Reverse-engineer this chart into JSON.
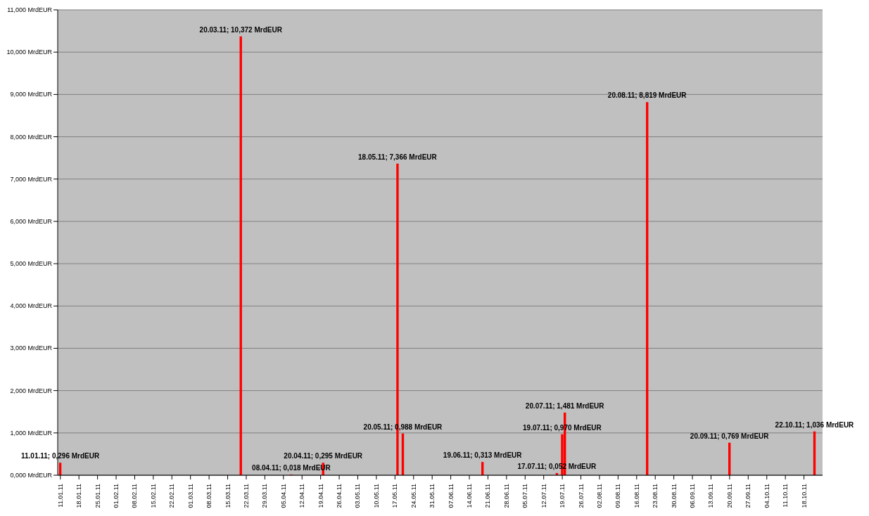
{
  "chart_data": {
    "type": "bar",
    "x": [
      "--01-11",
      "--03-20",
      "--04-08",
      "--04-20",
      "--05-18",
      "--05-20",
      "--06-19",
      "--07-17",
      "--07-19",
      "--07-20",
      "--08-20",
      "--09-20",
      "--10-22"
    ],
    "values": [
      0.296,
      10.372,
      0.018,
      0.295,
      7.366,
      0.988,
      0.313,
      0.052,
      0.97,
      1.481,
      8.819,
      0.769,
      1.036
    ],
    "value_labels": [
      "11.01.11; 0,296 MrdEUR",
      "20.03.11; 10,372 MrdEUR",
      "08.04.11; 0,018 MrdEUR",
      "20.04.11; 0,295 MrdEUR",
      "18.05.11; 7,366 MrdEUR",
      "20.05.11; 0,988 MrdEUR",
      "19.06.11; 0,313 MrdEUR",
      "17.07.11; 0,052 MrdEUR",
      "19.07.11; 0,970 MrdEUR",
      "20.07.11; 1,481 MrdEUR",
      "20.08.11; 8,819 MrdEUR",
      "20.09.11; 0,769 MrdEUR",
      "22.10.11; 1,036 MrdEUR"
    ],
    "color": "#ff0000",
    "ylim": [
      0,
      11
    ],
    "yticks": [
      {
        "value": 0,
        "label": "0,000 MrdEUR"
      },
      {
        "value": 1,
        "label": "1,000 MrdEUR"
      },
      {
        "value": 2,
        "label": "2,000 MrdEUR"
      },
      {
        "value": 3,
        "label": "3,000 MrdEUR"
      },
      {
        "value": 4,
        "label": "4,000 MrdEUR"
      },
      {
        "value": 5,
        "label": "5,000 MrdEUR"
      },
      {
        "value": 6,
        "label": "6,000 MrdEUR"
      },
      {
        "value": 7,
        "label": "7,000 MrdEUR"
      },
      {
        "value": 8,
        "label": "8,000 MrdEUR"
      },
      {
        "value": 9,
        "label": "9,000 MrdEUR"
      },
      {
        "value": 10,
        "label": "10,000 MrdEUR"
      },
      {
        "value": 11,
        "label": "11,000 MrdEUR"
      }
    ],
    "xlim": [
      "--01-10",
      "--10-25"
    ],
    "xticks": [
      {
        "value": "--01-11",
        "label": "11.01.11"
      },
      {
        "value": "--01-18",
        "label": "18.01.11"
      },
      {
        "value": "--01-25",
        "label": "25.01.11"
      },
      {
        "value": "--02-01",
        "label": "01.02.11"
      },
      {
        "value": "--02-08",
        "label": "08.02.11"
      },
      {
        "value": "--02-15",
        "label": "15.02.11"
      },
      {
        "value": "--02-22",
        "label": "22.02.11"
      },
      {
        "value": "--03-01",
        "label": "01.03.11"
      },
      {
        "value": "--03-08",
        "label": "08.03.11"
      },
      {
        "value": "--03-15",
        "label": "15.03.11"
      },
      {
        "value": "--03-22",
        "label": "22.03.11"
      },
      {
        "value": "--03-29",
        "label": "29.03.11"
      },
      {
        "value": "--04-05",
        "label": "05.04.11"
      },
      {
        "value": "--04-12",
        "label": "12.04.11"
      },
      {
        "value": "--04-19",
        "label": "19.04.11"
      },
      {
        "value": "--04-26",
        "label": "26.04.11"
      },
      {
        "value": "--05-03",
        "label": "03.05.11"
      },
      {
        "value": "--05-10",
        "label": "10.05.11"
      },
      {
        "value": "--05-17",
        "label": "17.05.11"
      },
      {
        "value": "--05-24",
        "label": "24.05.11"
      },
      {
        "value": "--05-31",
        "label": "31.05.11"
      },
      {
        "value": "--06-07",
        "label": "07.06.11"
      },
      {
        "value": "--06-14",
        "label": "14.06.11"
      },
      {
        "value": "--06-21",
        "label": "21.06.11"
      },
      {
        "value": "--06-28",
        "label": "28.06.11"
      },
      {
        "value": "--07-05",
        "label": "05.07.11"
      },
      {
        "value": "--07-12",
        "label": "12.07.11"
      },
      {
        "value": "--07-19",
        "label": "19.07.11"
      },
      {
        "value": "--07-26",
        "label": "26.07.11"
      },
      {
        "value": "--08-02",
        "label": "02.08.11"
      },
      {
        "value": "--08-09",
        "label": "09.08.11"
      },
      {
        "value": "--08-16",
        "label": "16.08.11"
      },
      {
        "value": "--08-23",
        "label": "23.08.11"
      },
      {
        "value": "--08-30",
        "label": "30.08.11"
      },
      {
        "value": "--09-06",
        "label": "06.09.11"
      },
      {
        "value": "--09-13",
        "label": "13.09.11"
      },
      {
        "value": "--09-20",
        "label": "20.09.11"
      },
      {
        "value": "--09-27",
        "label": "27.09.11"
      },
      {
        "value": "--10-04",
        "label": "04.10.11"
      },
      {
        "value": "--10-11",
        "label": "11.10.11"
      },
      {
        "value": "--10-18",
        "label": "18.10.11"
      }
    ],
    "grid": "y"
  }
}
